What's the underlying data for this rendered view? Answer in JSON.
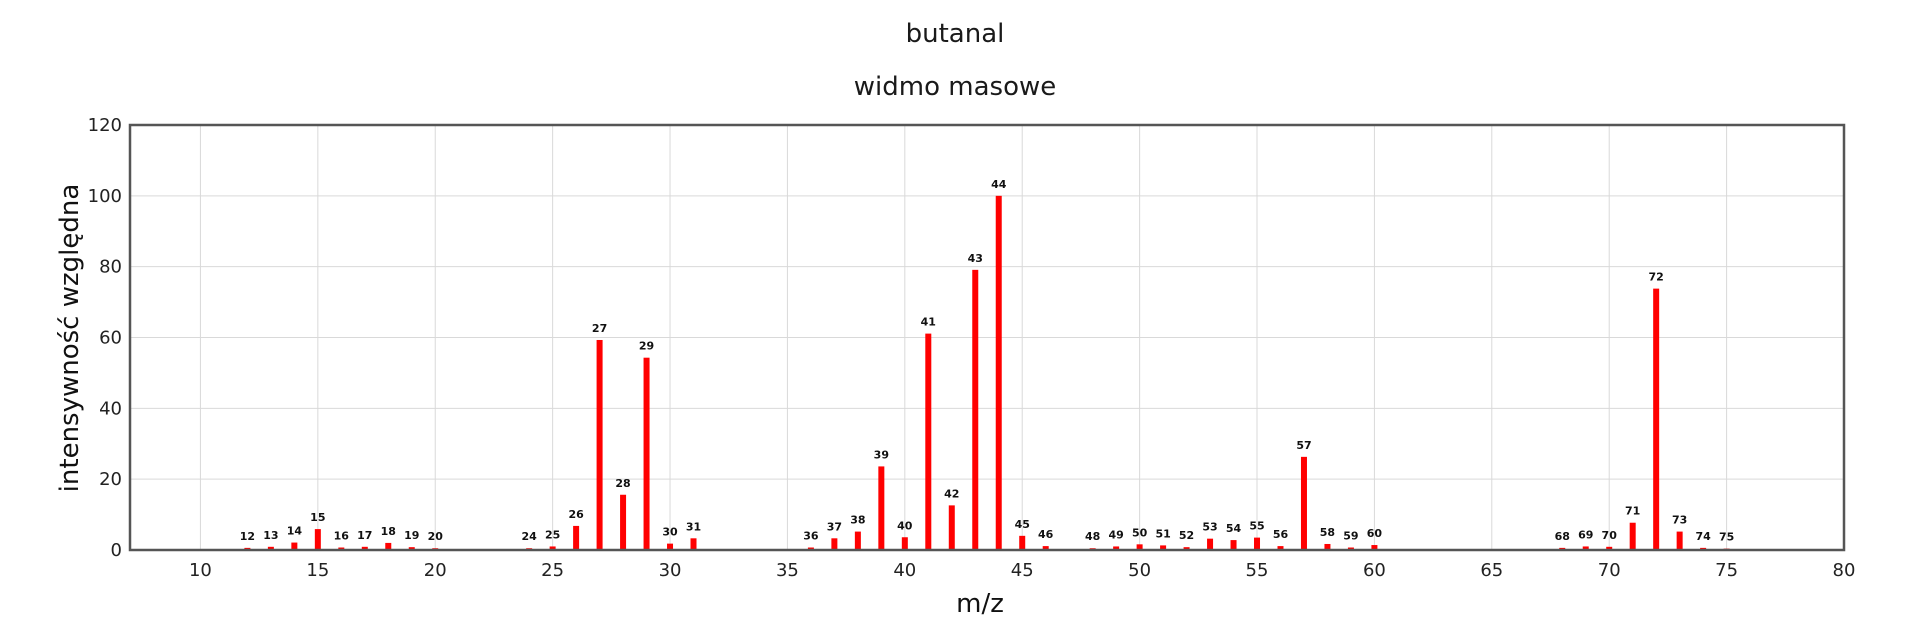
{
  "chart_data": {
    "type": "bar",
    "title": "butanal",
    "subtitle": "widmo masowe",
    "xlabel": "m/z",
    "ylabel": "intensywność względna",
    "xlim": [
      7,
      80
    ],
    "ylim": [
      0,
      120
    ],
    "xticks": [
      10,
      15,
      20,
      25,
      30,
      35,
      40,
      45,
      50,
      55,
      60,
      65,
      70,
      75,
      80
    ],
    "yticks": [
      0,
      20,
      40,
      60,
      80,
      100,
      120
    ],
    "grid": true,
    "bar_color": "#ff0000",
    "x": [
      12,
      13,
      14,
      15,
      16,
      17,
      18,
      19,
      20,
      24,
      25,
      26,
      27,
      28,
      29,
      30,
      31,
      36,
      37,
      38,
      39,
      40,
      41,
      42,
      43,
      44,
      45,
      46,
      48,
      49,
      50,
      51,
      52,
      53,
      54,
      55,
      56,
      57,
      58,
      59,
      60,
      68,
      69,
      70,
      71,
      72,
      73,
      74,
      75
    ],
    "values": [
      0.6,
      0.9,
      2.1,
      5.9,
      0.7,
      0.9,
      2.0,
      0.8,
      0.5,
      0.5,
      1.0,
      6.8,
      59.3,
      15.6,
      54.3,
      1.8,
      3.3,
      0.7,
      3.3,
      5.2,
      23.6,
      3.6,
      61.1,
      12.6,
      79.1,
      100,
      4.0,
      1.1,
      0.5,
      1.0,
      1.6,
      1.3,
      0.8,
      3.2,
      2.8,
      3.5,
      1.1,
      26.3,
      1.7,
      0.7,
      1.4,
      0.6,
      1.0,
      0.9,
      7.7,
      73.8,
      5.2,
      0.6,
      0.4
    ]
  }
}
